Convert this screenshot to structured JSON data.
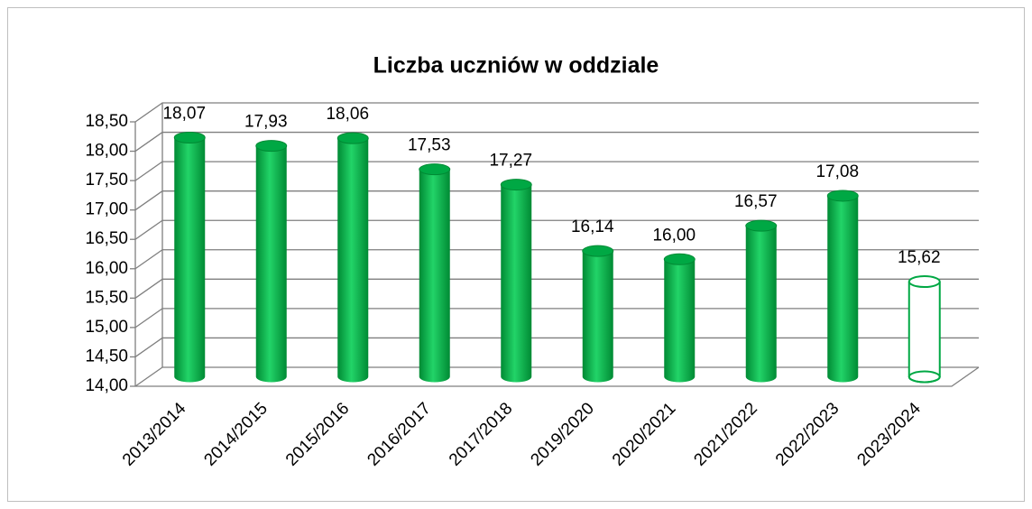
{
  "chart_data": {
    "type": "bar3d",
    "title": "Liczba uczniów w oddziale",
    "categories": [
      "2013/2014",
      "2014/2015",
      "2015/2016",
      "2016/2017",
      "2017/2018",
      "2019/2020",
      "2020/2021",
      "2021/2022",
      "2022/2023",
      "2023/2024"
    ],
    "values": [
      18.07,
      17.93,
      18.06,
      17.53,
      17.27,
      16.14,
      16.0,
      16.57,
      17.08,
      15.62
    ],
    "value_labels": [
      "18,07",
      "17,93",
      "18,06",
      "17,53",
      "17,27",
      "16,14",
      "16,00",
      "16,57",
      "17,08",
      "15,62"
    ],
    "fill_styles": [
      "solid",
      "solid",
      "solid",
      "solid",
      "solid",
      "solid",
      "solid",
      "solid",
      "solid",
      "outline"
    ],
    "color": "#00a844",
    "ylim": [
      14,
      18.5
    ],
    "yticks": [
      {
        "value": 14,
        "label": "14,00"
      },
      {
        "value": 14.5,
        "label": "14,50"
      },
      {
        "value": 15,
        "label": "15,00"
      },
      {
        "value": 15.5,
        "label": "15,50"
      },
      {
        "value": 16,
        "label": "16,00"
      },
      {
        "value": 16.5,
        "label": "16,50"
      },
      {
        "value": 17,
        "label": "17,00"
      },
      {
        "value": 17.5,
        "label": "17,50"
      },
      {
        "value": 18,
        "label": "18,00"
      },
      {
        "value": 18.5,
        "label": "18,50"
      }
    ],
    "grid": true
  }
}
